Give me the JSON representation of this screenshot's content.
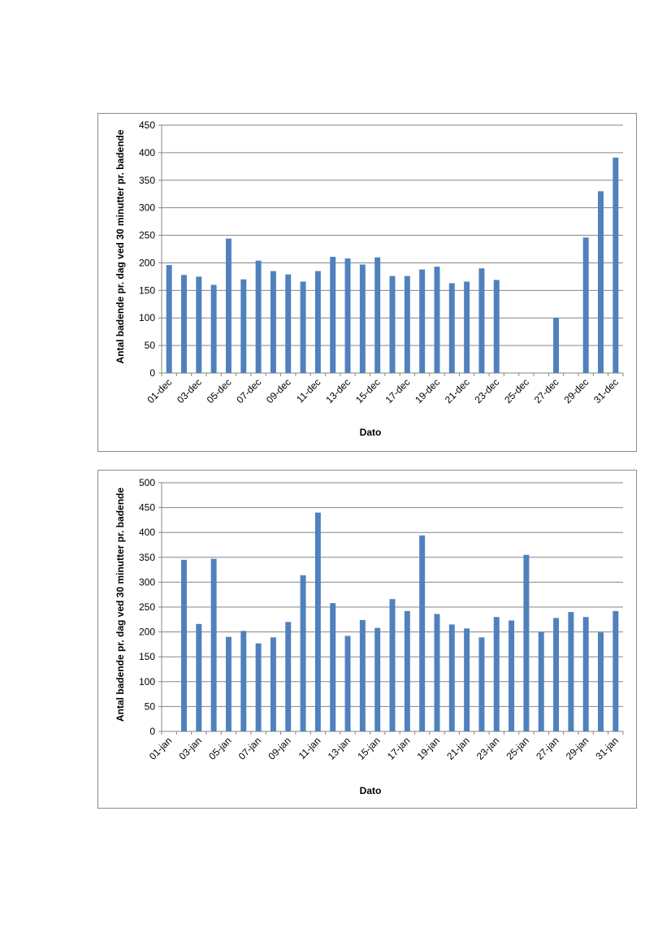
{
  "chart_data": [
    {
      "type": "bar",
      "xlabel": "Dato",
      "ylabel": "Antal badende pr. dag ved 30 minutter pr. badende",
      "ylim": [
        0,
        450
      ],
      "yticks": [
        0,
        50,
        100,
        150,
        200,
        250,
        300,
        350,
        400,
        450
      ],
      "grid": true,
      "bar_color": "#4f81bd",
      "categories": [
        "01-dec",
        "02-dec",
        "03-dec",
        "04-dec",
        "05-dec",
        "06-dec",
        "07-dec",
        "08-dec",
        "09-dec",
        "10-dec",
        "11-dec",
        "12-dec",
        "13-dec",
        "14-dec",
        "15-dec",
        "16-dec",
        "17-dec",
        "18-dec",
        "19-dec",
        "20-dec",
        "21-dec",
        "22-dec",
        "23-dec",
        "24-dec",
        "25-dec",
        "26-dec",
        "27-dec",
        "28-dec",
        "29-dec",
        "30-dec",
        "31-dec"
      ],
      "tick_labels": [
        "01-dec",
        "03-dec",
        "05-dec",
        "07-dec",
        "09-dec",
        "11-dec",
        "13-dec",
        "15-dec",
        "17-dec",
        "19-dec",
        "21-dec",
        "23-dec",
        "25-dec",
        "27-dec",
        "29-dec",
        "31-dec"
      ],
      "values": [
        196,
        178,
        175,
        160,
        244,
        170,
        204,
        185,
        179,
        166,
        185,
        211,
        208,
        197,
        210,
        176,
        176,
        188,
        193,
        163,
        166,
        190,
        169,
        0,
        0,
        0,
        100,
        0,
        246,
        330,
        391
      ]
    },
    {
      "type": "bar",
      "xlabel": "Dato",
      "ylabel": "Antal badende pr. dag ved 30 minutter pr. badende",
      "ylim": [
        0,
        500
      ],
      "yticks": [
        0,
        50,
        100,
        150,
        200,
        250,
        300,
        350,
        400,
        450,
        500
      ],
      "grid": true,
      "bar_color": "#4f81bd",
      "categories": [
        "01-jan",
        "02-jan",
        "03-jan",
        "04-jan",
        "05-jan",
        "06-jan",
        "07-jan",
        "08-jan",
        "09-jan",
        "10-jan",
        "11-jan",
        "12-jan",
        "13-jan",
        "14-jan",
        "15-jan",
        "16-jan",
        "17-jan",
        "18-jan",
        "19-jan",
        "20-jan",
        "21-jan",
        "22-jan",
        "23-jan",
        "24-jan",
        "25-jan",
        "26-jan",
        "27-jan",
        "28-jan",
        "29-jan",
        "30-jan",
        "31-jan"
      ],
      "tick_labels": [
        "01-jan",
        "03-jan",
        "05-jan",
        "07-jan",
        "09-jan",
        "11-jan",
        "13-jan",
        "15-jan",
        "17-jan",
        "19-jan",
        "21-jan",
        "23-jan",
        "25-jan",
        "27-jan",
        "29-jan",
        "31-jan"
      ],
      "values": [
        0,
        345,
        216,
        347,
        190,
        202,
        177,
        189,
        220,
        314,
        440,
        258,
        192,
        224,
        208,
        266,
        242,
        394,
        236,
        215,
        207,
        189,
        230,
        223,
        355,
        200,
        228,
        240,
        230,
        199,
        242
      ]
    }
  ]
}
